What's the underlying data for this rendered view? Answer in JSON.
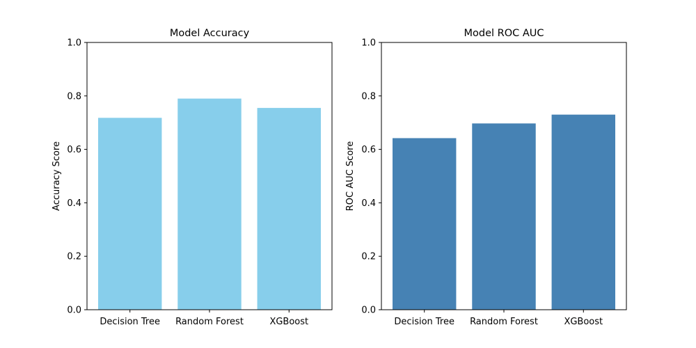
{
  "chart_data": [
    {
      "type": "bar",
      "title": "Model Accuracy",
      "xlabel": "",
      "ylabel": "Accuracy Score",
      "categories": [
        "Decision Tree",
        "Random Forest",
        "XGBoost"
      ],
      "values": [
        0.718,
        0.79,
        0.755
      ],
      "ylim": [
        0,
        1
      ],
      "yticks": [
        "0.0",
        "0.2",
        "0.4",
        "0.6",
        "0.8",
        "1.0"
      ],
      "color": "#87CEEB",
      "grid": false
    },
    {
      "type": "bar",
      "title": "Model ROC AUC",
      "xlabel": "",
      "ylabel": "ROC AUC Score",
      "categories": [
        "Decision Tree",
        "Random Forest",
        "XGBoost"
      ],
      "values": [
        0.642,
        0.697,
        0.73
      ],
      "ylim": [
        0,
        1
      ],
      "yticks": [
        "0.0",
        "0.2",
        "0.4",
        "0.6",
        "0.8",
        "1.0"
      ],
      "color": "#4682B4",
      "grid": false
    }
  ]
}
